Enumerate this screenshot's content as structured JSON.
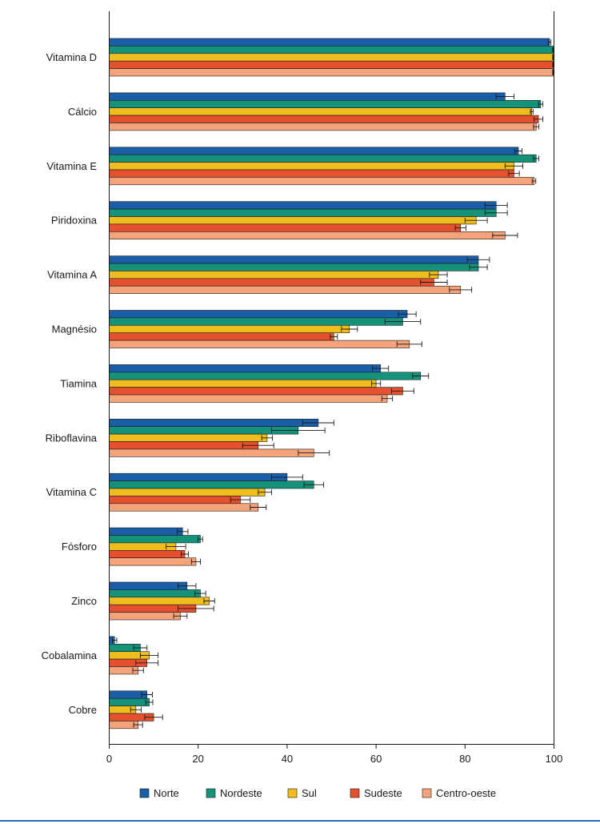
{
  "chart_data": {
    "type": "bar",
    "orientation": "horizontal",
    "title": "",
    "xlabel": "",
    "ylabel": "",
    "xlim": [
      0,
      100
    ],
    "xticks": [
      0,
      20,
      40,
      60,
      80,
      100
    ],
    "legend_position": "bottom",
    "categories": [
      "Vitamina D",
      "Cálcio",
      "Vitamina E",
      "Piridoxina",
      "Vitamina A",
      "Magnésio",
      "Tiamina",
      "Riboflavina",
      "Vitamina C",
      "Fósforo",
      "Zinco",
      "Cobalamina",
      "Cobre"
    ],
    "series": [
      {
        "name": "Norte",
        "color": "#1b5ea8",
        "values": [
          99.0,
          89.0,
          92.0,
          87.0,
          83.0,
          67.0,
          61.0,
          47.0,
          40.0,
          16.5,
          17.5,
          1.2,
          8.5
        ],
        "errors": [
          0.3,
          2.0,
          0.8,
          2.5,
          2.5,
          2.0,
          1.8,
          3.5,
          3.5,
          1.2,
          2.0,
          0.5,
          1.2
        ]
      },
      {
        "name": "Nordeste",
        "color": "#14937a",
        "values": [
          99.8,
          97.0,
          96.0,
          87.0,
          83.0,
          66.0,
          70.0,
          42.5,
          46.0,
          20.5,
          20.5,
          7.0,
          9.0
        ],
        "errors": [
          0.1,
          0.5,
          0.6,
          2.5,
          2.0,
          4.0,
          1.8,
          6.0,
          2.2,
          0.5,
          1.2,
          1.5,
          0.8
        ]
      },
      {
        "name": "Sul",
        "color": "#efbe1e",
        "values": [
          99.8,
          95.0,
          91.0,
          82.5,
          74.0,
          54.0,
          60.0,
          35.5,
          35.0,
          15.0,
          22.5,
          9.0,
          6.0
        ],
        "errors": [
          0.1,
          0.3,
          2.0,
          2.5,
          2.0,
          1.8,
          1.0,
          1.2,
          1.5,
          2.2,
          1.2,
          2.0,
          1.2
        ]
      },
      {
        "name": "Sudeste",
        "color": "#e5512e",
        "values": [
          99.8,
          96.5,
          91.0,
          79.0,
          73.0,
          50.5,
          66.0,
          33.5,
          29.5,
          17.0,
          19.5,
          8.5,
          10.0
        ],
        "errors": [
          0.1,
          1.0,
          1.2,
          1.2,
          3.0,
          0.8,
          2.5,
          3.5,
          2.2,
          0.8,
          4.0,
          2.5,
          2.0
        ]
      },
      {
        "name": "Centro-oeste",
        "color": "#f4a37a",
        "values": [
          99.8,
          96.0,
          95.5,
          89.0,
          79.0,
          67.5,
          62.5,
          46.0,
          33.5,
          19.5,
          16.0,
          6.5,
          6.5
        ],
        "errors": [
          0.1,
          0.6,
          0.4,
          2.8,
          2.5,
          2.8,
          1.2,
          3.5,
          1.8,
          1.0,
          1.5,
          1.2,
          1.0
        ]
      }
    ]
  }
}
